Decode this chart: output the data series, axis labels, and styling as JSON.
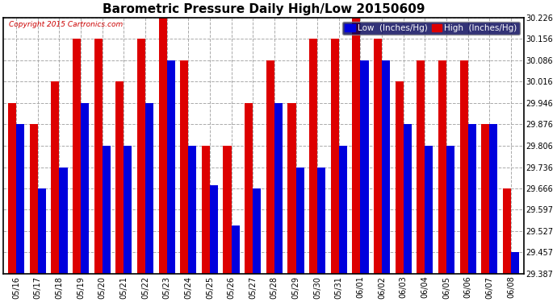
{
  "title": "Barometric Pressure Daily High/Low 20150609",
  "copyright": "Copyright 2015 Cartronics.com",
  "legend_low": "Low  (Inches/Hg)",
  "legend_high": "High  (Inches/Hg)",
  "dates": [
    "05/16",
    "05/17",
    "05/18",
    "05/19",
    "05/20",
    "05/21",
    "05/22",
    "05/23",
    "05/24",
    "05/25",
    "05/26",
    "05/27",
    "05/28",
    "05/29",
    "05/30",
    "05/31",
    "06/01",
    "06/02",
    "06/03",
    "06/04",
    "06/05",
    "06/06",
    "06/07",
    "06/08"
  ],
  "high": [
    29.946,
    29.876,
    30.016,
    30.156,
    30.156,
    30.016,
    30.156,
    30.226,
    30.086,
    29.806,
    29.806,
    29.946,
    30.086,
    29.946,
    30.156,
    30.156,
    30.226,
    30.156,
    30.016,
    30.086,
    30.086,
    30.086,
    29.876,
    29.666
  ],
  "low": [
    29.876,
    29.666,
    29.736,
    29.946,
    29.806,
    29.806,
    29.946,
    30.086,
    29.806,
    29.676,
    29.546,
    29.666,
    29.946,
    29.736,
    29.736,
    29.806,
    30.086,
    30.086,
    29.876,
    29.806,
    29.806,
    29.876,
    29.876,
    29.457
  ],
  "ylim_min": 29.387,
  "ylim_max": 30.226,
  "yticks": [
    29.387,
    29.457,
    29.527,
    29.597,
    29.666,
    29.736,
    29.806,
    29.876,
    29.946,
    30.016,
    30.086,
    30.156,
    30.226
  ],
  "bar_width": 0.38,
  "color_low": "#0000dd",
  "color_high": "#dd0000",
  "bg_color": "#ffffff",
  "plot_bg": "#ffffff",
  "grid_color": "#aaaaaa",
  "border_color": "#000000",
  "title_fontsize": 11,
  "tick_fontsize": 7,
  "legend_fontsize": 7.5
}
